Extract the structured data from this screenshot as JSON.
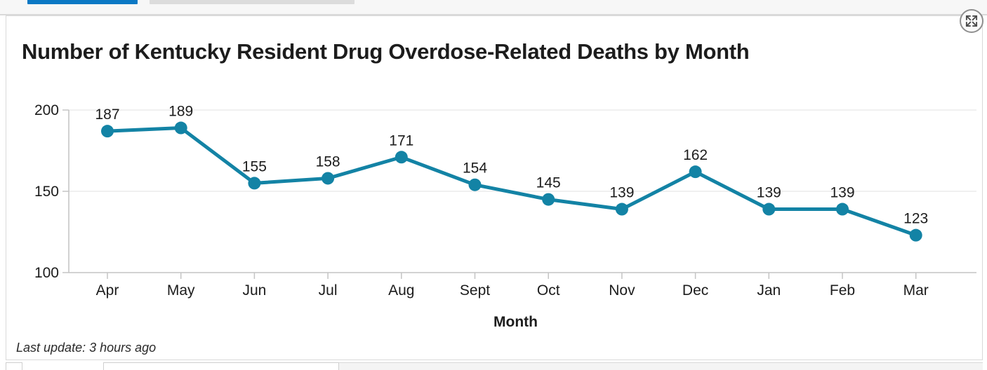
{
  "card": {
    "title": "Number of Kentucky Resident Drug Overdose-Related Deaths by Month",
    "footer_note": "Last update: 3 hours ago"
  },
  "controls": {
    "expand_icon": "expand-arrows-icon"
  },
  "top_bar": {
    "active_tab_color": "#0b78c4",
    "inactive_tab_color": "#dcdcdc"
  },
  "chart_data": {
    "type": "line",
    "title": "Number of Kentucky Resident Drug Overdose-Related Deaths by Month",
    "categories": [
      "Apr",
      "May",
      "Jun",
      "Jul",
      "Aug",
      "Sept",
      "Oct",
      "Nov",
      "Dec",
      "Jan",
      "Feb",
      "Mar"
    ],
    "values": [
      187,
      189,
      155,
      158,
      171,
      154,
      145,
      139,
      162,
      139,
      139,
      123
    ],
    "xlabel": "Month",
    "ylabel": "",
    "yticks": [
      100,
      150,
      200
    ],
    "ylim": [
      100,
      200
    ],
    "grid": "horizontal",
    "data_labels_visible": true,
    "legend": "none",
    "line_color": "#1383a5",
    "marker_color": "#1383a5"
  },
  "colors": {
    "axis_line": "#c4c4c4",
    "grid_line": "#ececec",
    "text": "#1c1c1c"
  }
}
